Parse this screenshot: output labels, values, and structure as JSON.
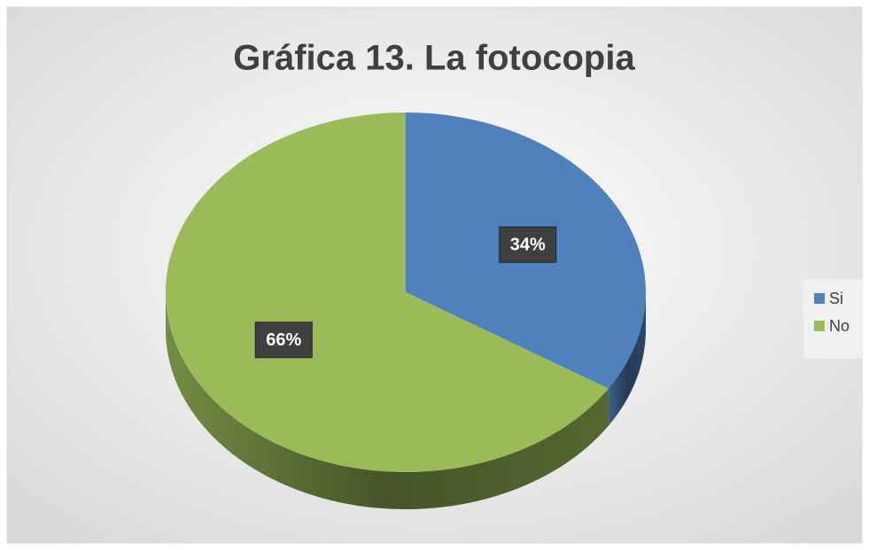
{
  "chart_data": {
    "type": "pie",
    "title": "Gráfica 13. La fotocopia",
    "categories": [
      "Si",
      "No"
    ],
    "values": [
      34,
      66
    ],
    "value_labels": [
      "34%",
      "66%"
    ],
    "colors": [
      "#4f81bd",
      "#9bbb59"
    ],
    "legend": "right"
  }
}
